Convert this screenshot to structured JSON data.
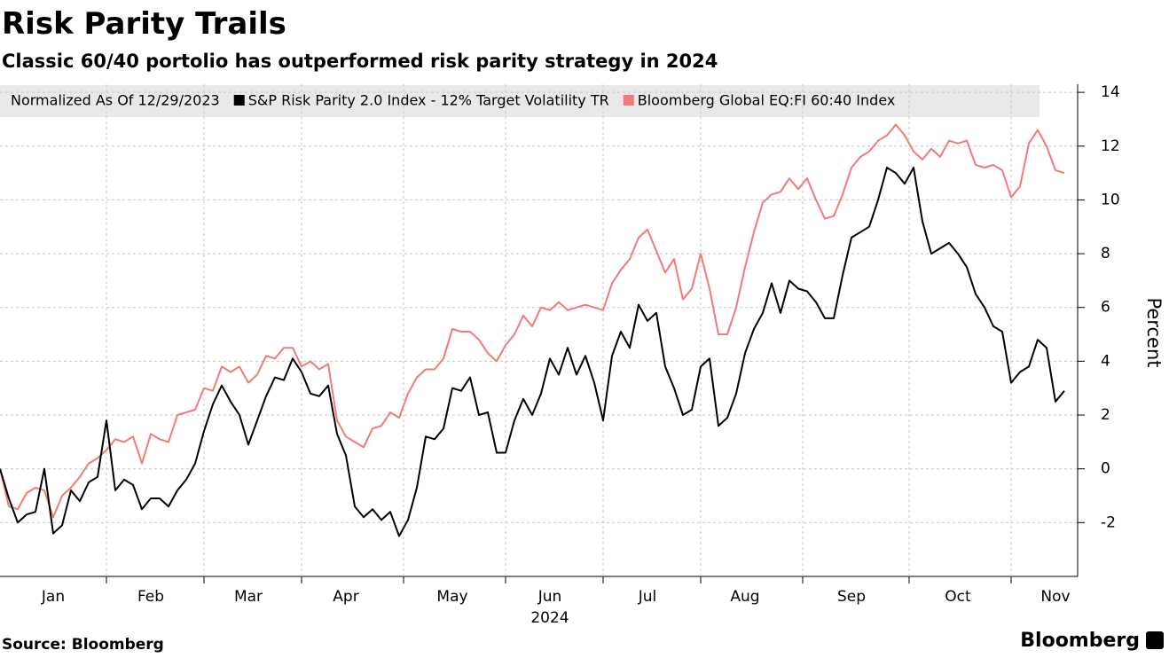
{
  "chart_data": {
    "type": "line",
    "title": "Risk Parity Trails",
    "subtitle": "Classic 60/40 portolio has outperformed risk parity strategy in 2024",
    "legend_title": "Normalized As Of 12/29/2023",
    "xlabel": "2024",
    "ylabel": "Percent",
    "source": "Source: Bloomberg",
    "logo": "Bloomberg",
    "grid": true,
    "ylim": [
      -4,
      14.3
    ],
    "yticks": [
      -2,
      0,
      2,
      4,
      6,
      8,
      10,
      12,
      14
    ],
    "categories": [
      null,
      null,
      null,
      null,
      null,
      null,
      "Jan",
      null,
      null,
      null,
      null,
      null,
      null,
      null,
      null,
      null,
      null,
      "Feb",
      null,
      null,
      null,
      null,
      null,
      null,
      null,
      null,
      null,
      null,
      "Mar",
      null,
      null,
      null,
      null,
      null,
      null,
      null,
      null,
      null,
      null,
      "Apr",
      null,
      null,
      null,
      null,
      null,
      null,
      null,
      null,
      null,
      null,
      null,
      "May",
      null,
      null,
      null,
      null,
      null,
      null,
      null,
      null,
      null,
      null,
      "Jun",
      null,
      null,
      null,
      null,
      null,
      null,
      null,
      null,
      null,
      null,
      "Jul",
      null,
      null,
      null,
      null,
      null,
      null,
      null,
      null,
      null,
      null,
      "Aug",
      null,
      null,
      null,
      null,
      null,
      null,
      null,
      null,
      null,
      null,
      null,
      "Sep",
      null,
      null,
      null,
      null,
      null,
      null,
      null,
      null,
      null,
      null,
      null,
      "Oct",
      null,
      null,
      null,
      null,
      null,
      null,
      null,
      null,
      null,
      null,
      "Nov",
      null
    ],
    "series": [
      {
        "name": "S&P Risk Parity 2.0 Index - 12% Target Volatility TR",
        "color": "#000000",
        "values": [
          0,
          -1.1,
          -2.0,
          -1.7,
          -1.6,
          0,
          -2.4,
          -2.1,
          -0.8,
          -1.2,
          -0.5,
          -0.3,
          1.8,
          -0.8,
          -0.4,
          -0.6,
          -1.5,
          -1.1,
          -1.1,
          -1.4,
          -0.8,
          -0.4,
          0.2,
          1.4,
          2.4,
          3.1,
          2.5,
          2.0,
          0.9,
          1.8,
          2.7,
          3.4,
          3.3,
          4.1,
          3.6,
          2.8,
          2.7,
          3.1,
          1.3,
          0.5,
          -1.4,
          -1.8,
          -1.5,
          -1.9,
          -1.6,
          -2.5,
          -1.9,
          -0.7,
          1.2,
          1.1,
          1.5,
          3.0,
          2.9,
          3.4,
          2.0,
          2.1,
          0.6,
          0.6,
          1.8,
          2.6,
          2.0,
          2.8,
          4.1,
          3.5,
          4.5,
          3.5,
          4.2,
          3.2,
          1.8,
          4.2,
          5.1,
          4.5,
          6.1,
          5.5,
          5.8,
          3.8,
          3.0,
          2.0,
          2.2,
          3.8,
          4.1,
          1.6,
          1.9,
          2.8,
          4.3,
          5.2,
          5.8,
          6.9,
          5.8,
          7.0,
          6.7,
          6.6,
          6.2,
          5.6,
          5.6,
          7.2,
          8.6,
          8.8,
          9.0,
          10.0,
          11.2,
          11.0,
          10.6,
          11.2,
          9.2,
          8.0,
          8.2,
          8.4,
          8.0,
          7.5,
          6.5,
          6.0,
          5.3,
          5.1,
          3.2,
          3.6,
          3.8,
          4.8,
          4.5,
          2.5,
          2.9
        ]
      },
      {
        "name": "Bloomberg Global EQ:FI 60:40 Index",
        "color": "#f07b78",
        "values": [
          0,
          -1.4,
          -1.5,
          -0.9,
          -0.7,
          -0.8,
          -1.8,
          -1.0,
          -0.7,
          -0.3,
          0.2,
          0.4,
          0.7,
          1.1,
          1.0,
          1.2,
          0.2,
          1.3,
          1.1,
          1.0,
          2.0,
          2.1,
          2.2,
          3.0,
          2.9,
          3.8,
          3.6,
          3.8,
          3.2,
          3.5,
          4.2,
          4.1,
          4.5,
          4.5,
          3.8,
          4.0,
          3.7,
          3.9,
          1.8,
          1.2,
          1.0,
          0.8,
          1.5,
          1.6,
          2.1,
          1.9,
          2.8,
          3.4,
          3.7,
          3.7,
          4.1,
          5.2,
          5.1,
          5.1,
          4.8,
          4.3,
          4.0,
          4.6,
          5.0,
          5.7,
          5.3,
          6.0,
          5.9,
          6.2,
          5.9,
          6.0,
          6.1,
          6.0,
          5.9,
          6.9,
          7.4,
          7.8,
          8.6,
          8.9,
          8.1,
          7.3,
          7.8,
          6.3,
          6.7,
          8.0,
          6.7,
          5.0,
          5.0,
          6.0,
          7.5,
          8.8,
          9.9,
          10.2,
          10.3,
          10.8,
          10.4,
          10.8,
          10.0,
          9.3,
          9.4,
          10.2,
          11.2,
          11.6,
          11.8,
          12.2,
          12.4,
          12.8,
          12.4,
          11.8,
          11.5,
          11.9,
          11.6,
          12.2,
          12.1,
          12.2,
          11.3,
          11.2,
          11.3,
          11.1,
          10.1,
          10.5,
          12.1,
          12.6,
          12.0,
          11.1,
          11.0
        ]
      }
    ]
  }
}
